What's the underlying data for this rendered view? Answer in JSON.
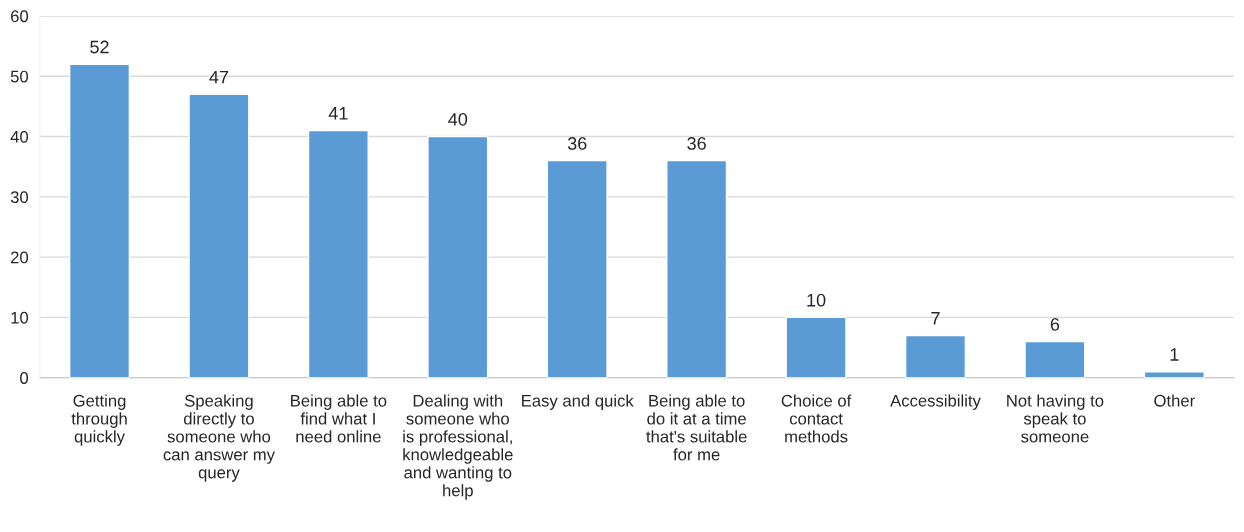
{
  "chart_data": {
    "type": "bar",
    "categories": [
      "Getting\nthrough\nquickly",
      "Speaking\ndirectly to\nsomeone who\ncan answer my\nquery",
      "Being able to\nfind what I\nneed online",
      "Dealing with\nsomeone who\nis professional,\nknowledgeable\nand wanting to\nhelp",
      "Easy and quick",
      "Being able to\ndo it at a time\nthat's suitable\nfor me",
      "Choice of\ncontact\nmethods",
      "Accessibility",
      "Not having to\nspeak to\nsomeone",
      "Other"
    ],
    "values": [
      52,
      47,
      41,
      40,
      36,
      36,
      10,
      7,
      6,
      1
    ],
    "color": "#5b9bd5",
    "ylim": [
      0,
      60
    ],
    "yticks": [
      0,
      10,
      20,
      30,
      40,
      50,
      60
    ],
    "grid": "y",
    "data_labels": true
  }
}
